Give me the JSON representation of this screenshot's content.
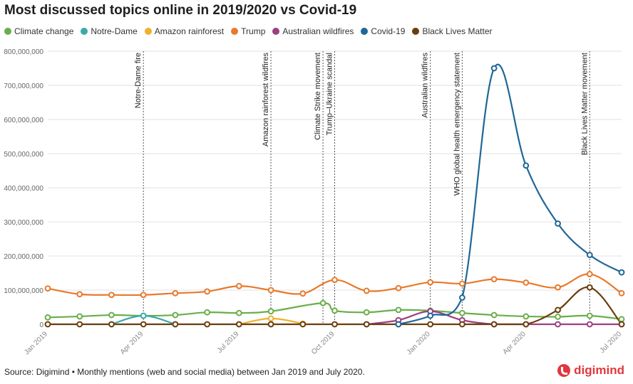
{
  "title": "Most discussed topics online in 2019/2020 vs Covid-19",
  "footer": "Source: Digimind • Monthly mentions (web and social media) between Jan 2019 and July 2020.",
  "brand": "digimind",
  "brand_color": "#e3363e",
  "chart_data": {
    "type": "line",
    "title": "Most discussed topics online in 2019/2020 vs Covid-19",
    "x": [
      "2019-01",
      "2019-02",
      "2019-03",
      "2019-04",
      "2019-05",
      "2019-06",
      "2019-07",
      "2019-08",
      "2019-09",
      "2019-10",
      "2019-11",
      "2019-12",
      "2020-01",
      "2020-02",
      "2020-03",
      "2020-04",
      "2020-05",
      "2020-06",
      "2020-07"
    ],
    "x_ticks": [
      {
        "at": "2019-01",
        "label": "Jan 2019"
      },
      {
        "at": "2019-04",
        "label": "Apr 2019"
      },
      {
        "at": "2019-07",
        "label": "Jul 2019"
      },
      {
        "at": "2019-10",
        "label": "Oct 2019"
      },
      {
        "at": "2020-01",
        "label": "Jan 2020"
      },
      {
        "at": "2020-04",
        "label": "Apr 2020"
      },
      {
        "at": "2020-07",
        "label": "Jul 2020"
      }
    ],
    "ylim": [
      0,
      800000000
    ],
    "y_ticks": [
      0,
      100000000,
      200000000,
      300000000,
      400000000,
      500000000,
      600000000,
      700000000,
      800000000
    ],
    "y_tick_labels": [
      "0",
      "100,000,000",
      "200,000,000",
      "300,000,000",
      "400,000,000",
      "500,000,000",
      "600,000,000",
      "700,000,000",
      "800,000,000"
    ],
    "grid": true,
    "legend_position": "top-left",
    "series": [
      {
        "name": "Climate change",
        "color": "#6aae4b",
        "points": [
          [
            "2019-01",
            20000000
          ],
          [
            "2019-02",
            23000000
          ],
          [
            "2019-03",
            27000000
          ],
          [
            "2019-04",
            25000000
          ],
          [
            "2019-05",
            27000000
          ],
          [
            "2019-06",
            35000000
          ],
          [
            "2019-07",
            33000000
          ],
          [
            "2019-08",
            38000000
          ],
          [
            "2019-09-20",
            62000000
          ],
          [
            "2019-10",
            40000000
          ],
          [
            "2019-11",
            35000000
          ],
          [
            "2019-12",
            42000000
          ],
          [
            "2020-01",
            40000000
          ],
          [
            "2020-02",
            33000000
          ],
          [
            "2020-03",
            27000000
          ],
          [
            "2020-04",
            23000000
          ],
          [
            "2020-05",
            22000000
          ],
          [
            "2020-06",
            25000000
          ],
          [
            "2020-07",
            15000000
          ]
        ]
      },
      {
        "name": "Notre-Dame",
        "color": "#3aa9ad",
        "points": [
          [
            "2019-03",
            0
          ],
          [
            "2019-04",
            25000000
          ],
          [
            "2019-05",
            0
          ]
        ]
      },
      {
        "name": "Amazon rainforest",
        "color": "#f0b12e",
        "points": [
          [
            "2019-07",
            0
          ],
          [
            "2019-08",
            17000000
          ],
          [
            "2019-09",
            2000000
          ]
        ]
      },
      {
        "name": "Trump",
        "color": "#e8792b",
        "points": [
          [
            "2019-01",
            105000000
          ],
          [
            "2019-02",
            88000000
          ],
          [
            "2019-03",
            86000000
          ],
          [
            "2019-04",
            86000000
          ],
          [
            "2019-05",
            91000000
          ],
          [
            "2019-06",
            96000000
          ],
          [
            "2019-07",
            112000000
          ],
          [
            "2019-08",
            100000000
          ],
          [
            "2019-09",
            90000000
          ],
          [
            "2019-10",
            130000000
          ],
          [
            "2019-11",
            98000000
          ],
          [
            "2019-12",
            106000000
          ],
          [
            "2020-01",
            123000000
          ],
          [
            "2020-02",
            119000000
          ],
          [
            "2020-03",
            132000000
          ],
          [
            "2020-04",
            122000000
          ],
          [
            "2020-05",
            108000000
          ],
          [
            "2020-06",
            147000000
          ],
          [
            "2020-07",
            91000000
          ]
        ]
      },
      {
        "name": "Australian wildfires",
        "color": "#9a3f86",
        "points": [
          [
            "2019-11",
            0
          ],
          [
            "2019-12",
            12000000
          ],
          [
            "2020-01",
            38000000
          ],
          [
            "2020-02",
            12000000
          ],
          [
            "2020-03",
            0
          ],
          [
            "2020-04",
            0
          ],
          [
            "2020-05",
            0
          ],
          [
            "2020-06",
            0
          ],
          [
            "2020-07",
            0
          ]
        ]
      },
      {
        "name": "Covid-19",
        "color": "#1f6797",
        "points": [
          [
            "2019-12",
            0
          ],
          [
            "2020-01",
            25000000
          ],
          [
            "2020-02",
            78000000
          ],
          [
            "2020-03",
            750000000
          ],
          [
            "2020-04",
            465000000
          ],
          [
            "2020-05",
            295000000
          ],
          [
            "2020-06",
            203000000
          ],
          [
            "2020-07",
            152000000
          ]
        ]
      },
      {
        "name": "Black Lives Matter",
        "color": "#6b3d0c",
        "points": [
          [
            "2019-01",
            0
          ],
          [
            "2019-02",
            0
          ],
          [
            "2019-03",
            0
          ],
          [
            "2019-04",
            0
          ],
          [
            "2019-05",
            0
          ],
          [
            "2019-06",
            0
          ],
          [
            "2019-07",
            0
          ],
          [
            "2019-08",
            0
          ],
          [
            "2019-09",
            0
          ],
          [
            "2019-10",
            0
          ],
          [
            "2019-11",
            0
          ],
          [
            "2019-12",
            0
          ],
          [
            "2020-01",
            0
          ],
          [
            "2020-02",
            0
          ],
          [
            "2020-03",
            0
          ],
          [
            "2020-04",
            0
          ],
          [
            "2020-05",
            42000000
          ],
          [
            "2020-06",
            108000000
          ],
          [
            "2020-07",
            0
          ]
        ]
      }
    ],
    "annotations": [
      {
        "at": "2019-04",
        "label": "Notre-Dame fire"
      },
      {
        "at": "2019-08",
        "label": "Amazon rainforest wildfires"
      },
      {
        "at": "2019-09-20",
        "label": "Climate Strike movement"
      },
      {
        "at": "2019-10",
        "label": "Trump–Ukraine scandal"
      },
      {
        "at": "2020-01",
        "label": "Australian wildfires"
      },
      {
        "at": "2020-02",
        "label": "WHO global health emergency statement"
      },
      {
        "at": "2020-06",
        "label": "Black Lives Matter movement"
      }
    ]
  }
}
